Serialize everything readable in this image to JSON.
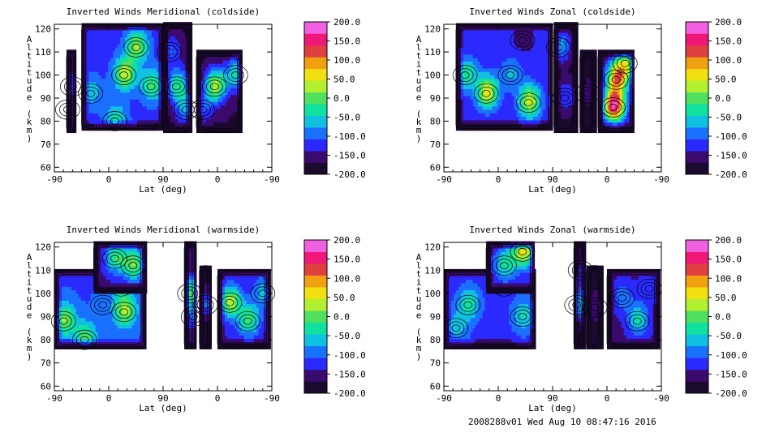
{
  "footer": {
    "run_info": "2008288v01 Wed Aug 10 08:47:16 2016"
  },
  "colors": {
    "palette": [
      "#1a0a2e",
      "#3a0a6e",
      "#2a2aff",
      "#1a70ff",
      "#10c0e0",
      "#10e0a0",
      "#50e060",
      "#b0f030",
      "#f0e010",
      "#f0a010",
      "#e04040",
      "#f01878",
      "#f060e0"
    ],
    "background": "#ffffff",
    "empty": "#ffffff"
  },
  "chart_data": [
    {
      "type": "heatmap",
      "title": "Inverted Winds Meridional (coldside)",
      "xlabel": "Lat (deg)",
      "ylabel": "Altitude (km)",
      "x_ticks": [
        "-90",
        "0",
        "90",
        "0",
        "-90"
      ],
      "y_ticks": [
        "60",
        "70",
        "80",
        "90",
        "100",
        "110",
        "120"
      ],
      "ylim": [
        58,
        122
      ],
      "colorbar_ticks": [
        "200.0",
        "150.0",
        "100.0",
        "50.0",
        "0.0",
        "-50.0",
        "-100.0",
        "-150.0",
        "-200.0"
      ],
      "zlim": [
        -200,
        200
      ],
      "regions": [
        {
          "x": [
            -70,
            -55
          ],
          "alt": [
            75,
            110
          ],
          "blobs": [
            {
              "x": -60,
              "alt": 95,
              "v": -90
            },
            {
              "x": -68,
              "alt": 85,
              "v": -150
            }
          ],
          "base": -140
        },
        {
          "x": -45,
          "x2": 90,
          "alt": [
            76,
            122
          ],
          "blobs": [
            {
              "x": 25,
              "alt": 100,
              "v": 40
            },
            {
              "x": 45,
              "alt": 112,
              "v": 20
            },
            {
              "x": -30,
              "alt": 92,
              "v": -60
            },
            {
              "x": 10,
              "alt": 80,
              "v": -30
            },
            {
              "x": 70,
              "alt": 95,
              "v": -10
            }
          ],
          "base": -120
        },
        {
          "x": [
            90,
            135
          ],
          "alt": [
            75,
            122
          ],
          "blobs": [
            {
              "x": 112,
              "alt": 95,
              "v": -20
            },
            {
              "x": 100,
              "alt": 110,
              "v": -100
            },
            {
              "x": 128,
              "alt": 85,
              "v": -60
            }
          ],
          "base": -170
        },
        {
          "x": [
            145,
            220
          ],
          "alt": [
            75,
            110
          ],
          "blobs": [
            {
              "x": 175,
              "alt": 95,
              "v": 30
            },
            {
              "x": 155,
              "alt": 85,
              "v": -110
            },
            {
              "x": 210,
              "alt": 100,
              "v": -40
            }
          ],
          "base": -170
        }
      ]
    },
    {
      "type": "heatmap",
      "title": "Inverted Winds Zonal (coldside)",
      "xlabel": "Lat (deg)",
      "ylabel": "Altitude (km)",
      "x_ticks": [
        "-90",
        "0",
        "90",
        "0",
        "-90"
      ],
      "y_ticks": [
        "60",
        "70",
        "80",
        "90",
        "100",
        "110",
        "120"
      ],
      "ylim": [
        58,
        122
      ],
      "colorbar_ticks": [
        "200.0",
        "150.0",
        "100.0",
        "50.0",
        "0.0",
        "-50.0",
        "-100.0",
        "-150.0",
        "-200.0"
      ],
      "zlim": [
        -200,
        200
      ],
      "regions": [
        {
          "x": [
            -70,
            90
          ],
          "alt": [
            76,
            122
          ],
          "blobs": [
            {
              "x": -20,
              "alt": 92,
              "v": 60
            },
            {
              "x": 50,
              "alt": 88,
              "v": 50
            },
            {
              "x": 20,
              "alt": 100,
              "v": -70
            },
            {
              "x": -55,
              "alt": 100,
              "v": -20
            },
            {
              "x": 40,
              "alt": 115,
              "v": -150
            }
          ],
          "base": -130
        },
        {
          "x": [
            92,
            130
          ],
          "alt": [
            75,
            122
          ],
          "blobs": [
            {
              "x": 110,
              "alt": 90,
              "v": -110
            },
            {
              "x": 100,
              "alt": 112,
              "v": -60
            }
          ],
          "base": -180
        },
        {
          "x": [
            135,
            160
          ],
          "alt": [
            75,
            110
          ],
          "blobs": [
            {
              "x": 148,
              "alt": 92,
              "v": -150
            }
          ],
          "base": -190
        },
        {
          "x": [
            165,
            225
          ],
          "alt": [
            75,
            110
          ],
          "blobs": [
            {
              "x": 190,
              "alt": 86,
              "v": 170
            },
            {
              "x": 195,
              "alt": 98,
              "v": 80
            },
            {
              "x": 210,
              "alt": 105,
              "v": 0
            }
          ],
          "base": -160
        }
      ]
    },
    {
      "type": "heatmap",
      "title": "Inverted Winds Meridional (warmside)",
      "xlabel": "Lat (deg)",
      "ylabel": "Altitude (km)",
      "x_ticks": [
        "-90",
        "0",
        "90",
        "0",
        "-90"
      ],
      "y_ticks": [
        "60",
        "70",
        "80",
        "90",
        "100",
        "110",
        "120"
      ],
      "ylim": [
        58,
        122
      ],
      "colorbar_ticks": [
        "200.0",
        "150.0",
        "100.0",
        "50.0",
        "0.0",
        "-50.0",
        "-100.0",
        "-150.0",
        "-200.0"
      ],
      "zlim": [
        -200,
        200
      ],
      "regions": [
        {
          "x": [
            -90,
            60
          ],
          "alt": [
            76,
            110
          ],
          "blobs": [
            {
              "x": -75,
              "alt": 88,
              "v": 20
            },
            {
              "x": -10,
              "alt": 95,
              "v": -100
            },
            {
              "x": 25,
              "alt": 92,
              "v": 30
            },
            {
              "x": 20,
              "alt": 103,
              "v": -70
            },
            {
              "x": -40,
              "alt": 80,
              "v": 0
            }
          ],
          "base": -110
        },
        {
          "x": [
            -25,
            60
          ],
          "alt": [
            100,
            122
          ],
          "blobs": [
            {
              "x": 10,
              "alt": 115,
              "v": -20
            },
            {
              "x": 40,
              "alt": 112,
              "v": 10
            }
          ],
          "base": -150
        },
        {
          "x": [
            125,
            145
          ],
          "alt": [
            76,
            122
          ],
          "blobs": [
            {
              "x": 134,
              "alt": 100,
              "v": 30
            },
            {
              "x": 140,
              "alt": 90,
              "v": -80
            }
          ],
          "base": -160
        },
        {
          "x": [
            150,
            170
          ],
          "alt": [
            76,
            112
          ],
          "blobs": [
            {
              "x": 160,
              "alt": 95,
              "v": -80
            }
          ],
          "base": -190
        },
        {
          "x": [
            180,
            265
          ],
          "alt": [
            76,
            110
          ],
          "blobs": [
            {
              "x": 200,
              "alt": 96,
              "v": 30
            },
            {
              "x": 230,
              "alt": 88,
              "v": -10
            },
            {
              "x": 255,
              "alt": 100,
              "v": -60
            }
          ],
          "base": -140
        }
      ]
    },
    {
      "type": "heatmap",
      "title": "Inverted Winds Zonal (warmside)",
      "xlabel": "Lat (deg)",
      "ylabel": "Altitude (km)",
      "x_ticks": [
        "-90",
        "0",
        "90",
        "0",
        "-90"
      ],
      "y_ticks": [
        "60",
        "70",
        "80",
        "90",
        "100",
        "110",
        "120"
      ],
      "ylim": [
        58,
        122
      ],
      "colorbar_ticks": [
        "200.0",
        "150.0",
        "100.0",
        "50.0",
        "0.0",
        "-50.0",
        "-100.0",
        "-150.0",
        "-200.0"
      ],
      "zlim": [
        -200,
        200
      ],
      "regions": [
        {
          "x": [
            -90,
            60
          ],
          "alt": [
            76,
            110
          ],
          "blobs": [
            {
              "x": -50,
              "alt": 95,
              "v": -30
            },
            {
              "x": 10,
              "alt": 103,
              "v": -120
            },
            {
              "x": 40,
              "alt": 90,
              "v": -40
            },
            {
              "x": -70,
              "alt": 85,
              "v": -60
            }
          ],
          "base": -120
        },
        {
          "x": [
            -20,
            60
          ],
          "alt": [
            100,
            122
          ],
          "blobs": [
            {
              "x": 40,
              "alt": 118,
              "v": 60
            },
            {
              "x": 10,
              "alt": 112,
              "v": -30
            }
          ],
          "base": -140
        },
        {
          "x": [
            125,
            142
          ],
          "alt": [
            76,
            122
          ],
          "blobs": [
            {
              "x": 130,
              "alt": 95,
              "v": 20
            },
            {
              "x": 136,
              "alt": 110,
              "v": -120
            }
          ],
          "base": -170
        },
        {
          "x": [
            146,
            172
          ],
          "alt": [
            76,
            112
          ],
          "blobs": [
            {
              "x": 160,
              "alt": 94,
              "v": -140
            }
          ],
          "base": -190
        },
        {
          "x": [
            180,
            265
          ],
          "alt": [
            76,
            110
          ],
          "blobs": [
            {
              "x": 205,
              "alt": 98,
              "v": -90
            },
            {
              "x": 230,
              "alt": 88,
              "v": -40
            },
            {
              "x": 250,
              "alt": 102,
              "v": -110
            }
          ],
          "base": -150
        }
      ]
    }
  ]
}
